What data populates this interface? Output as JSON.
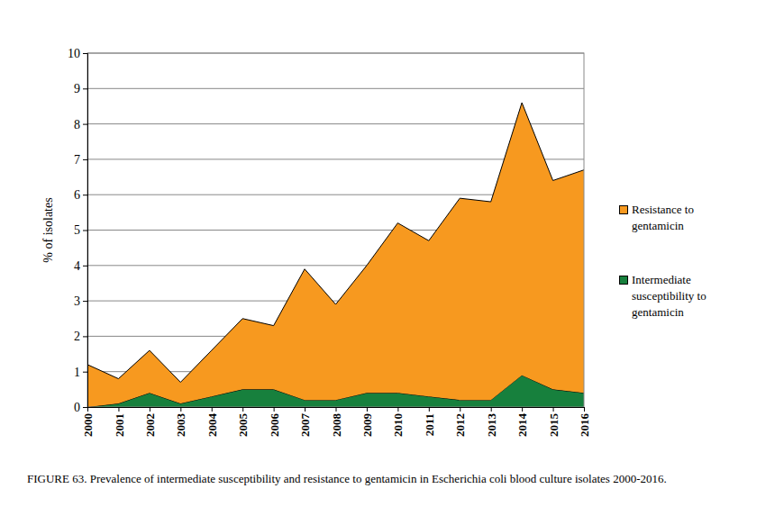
{
  "chart_data": {
    "type": "stacked_area",
    "title": "FIGURE 63. Prevalence of intermediate susceptibility and resistance to gentamicin in Escherichia coli blood culture isolates 2000-2016.",
    "y_label": "% of isolates",
    "categories": [
      "2000",
      "2001",
      "2002",
      "2003",
      "2004",
      "2005",
      "2006",
      "2007",
      "2008",
      "2009",
      "2010",
      "2011",
      "2012",
      "2013",
      "2014",
      "2015",
      "2016"
    ],
    "series": [
      {
        "name": "Intermediate susceptibility to gentamicin",
        "color": "#17803d",
        "values": [
          0,
          0.1,
          0.4,
          0.1,
          0.3,
          0.5,
          0.5,
          0.2,
          0.2,
          0.4,
          0.4,
          0.3,
          0.2,
          0.2,
          0.9,
          0.5,
          0.4
        ]
      },
      {
        "name": "Resistance to gentamicin",
        "color": "#f7991f",
        "values": [
          1.2,
          0.7,
          1.2,
          0.6,
          1.3,
          2.0,
          1.8,
          3.7,
          2.7,
          3.6,
          4.8,
          4.4,
          5.7,
          5.6,
          7.7,
          5.9,
          6.3
        ]
      }
    ],
    "stacked": true,
    "ylim": [
      0,
      10
    ],
    "yticks": [
      0,
      1,
      2,
      3,
      4,
      5,
      6,
      7,
      8,
      9,
      10
    ],
    "grid": true,
    "legend": "right"
  }
}
